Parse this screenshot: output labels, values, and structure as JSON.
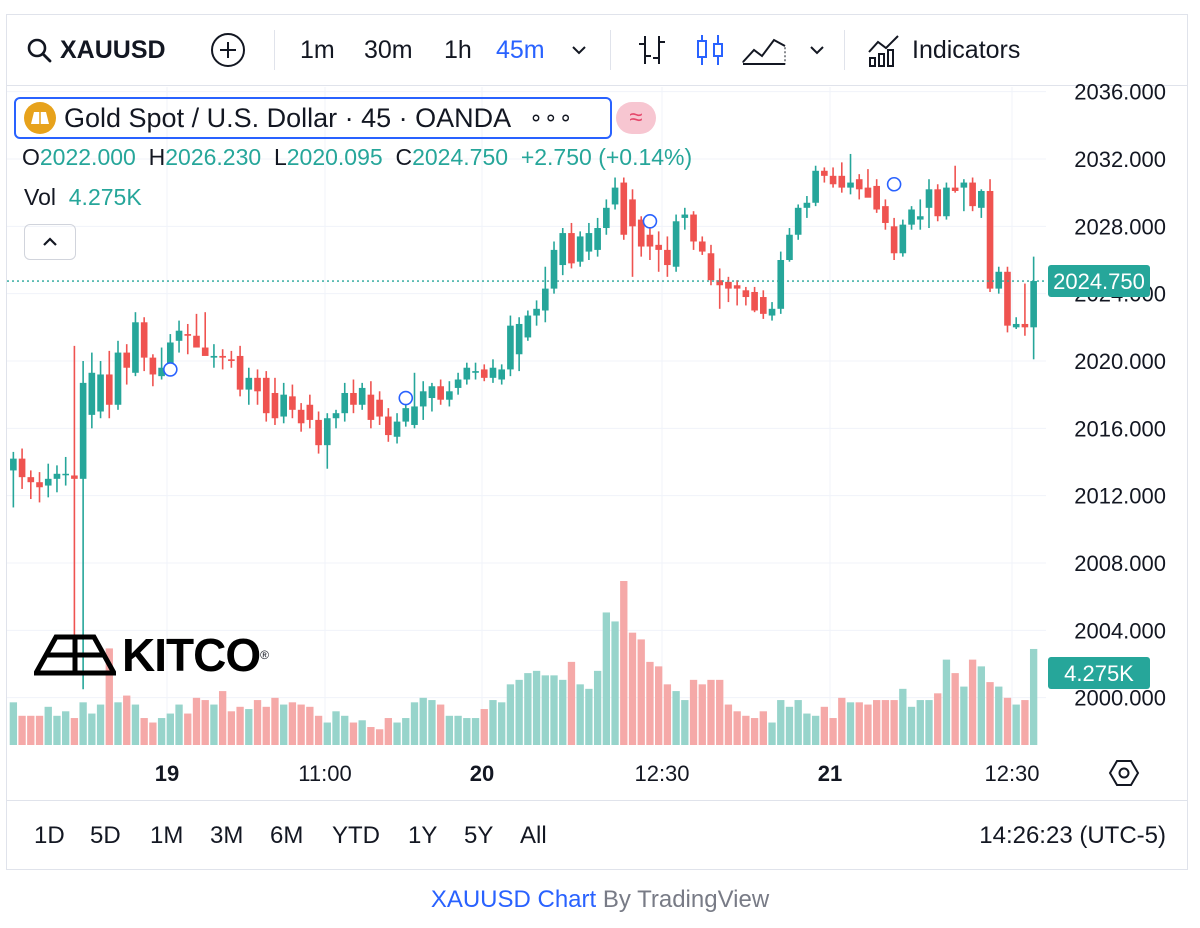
{
  "toolbar": {
    "symbol": "XAUUSD",
    "intervals": [
      "1m",
      "30m",
      "1h",
      "45m"
    ],
    "active_interval": "45m",
    "indicators_label": "Indicators"
  },
  "legend": {
    "title": "Gold Spot / U.S. Dollar · 45 · OANDA",
    "dots": "∘∘∘",
    "compare_symbol": "≈"
  },
  "ohlc": {
    "o_label": "O",
    "o": "2022.000",
    "h_label": "H",
    "h": "2026.230",
    "l_label": "L",
    "l": "2020.095",
    "c_label": "C",
    "c": "2024.750",
    "change": "+2.750 (+0.14%)"
  },
  "vol": {
    "label": "Vol",
    "value": "4.275K"
  },
  "watermark": "KITCO",
  "colors": {
    "up": "#26a69a",
    "down": "#ef5350",
    "accent": "#2962ff",
    "vol_up": "#97d4cb",
    "vol_down": "#f5a9a8"
  },
  "chart_data": {
    "type": "candlestick",
    "title": "Gold Spot / U.S. Dollar · 45 · OANDA",
    "y_ticks": [
      "2036.000",
      "2032.000",
      "2028.000",
      "2024.000",
      "2020.000",
      "2016.000",
      "2012.000",
      "2008.000",
      "2004.000",
      "2000.000"
    ],
    "ylim": [
      1997.5,
      2036.5
    ],
    "x_ticks": [
      "19",
      "11:00",
      "20",
      "12:30",
      "21",
      "12:30"
    ],
    "last_price": "2024.750",
    "last_volume": "4.275K",
    "grid": true,
    "candles": [
      {
        "o": 2013.5,
        "h": 2014.6,
        "l": 2011.3,
        "c": 2014.2,
        "v": 1.9
      },
      {
        "o": 2014.2,
        "h": 2014.8,
        "l": 2012.4,
        "c": 2013.1,
        "v": 1.3
      },
      {
        "o": 2013.1,
        "h": 2013.5,
        "l": 2011.8,
        "c": 2012.8,
        "v": 1.3
      },
      {
        "o": 2012.8,
        "h": 2013.4,
        "l": 2011.6,
        "c": 2012.5,
        "v": 1.3
      },
      {
        "o": 2012.6,
        "h": 2013.9,
        "l": 2011.9,
        "c": 2013.0,
        "v": 1.7
      },
      {
        "o": 2013.0,
        "h": 2013.8,
        "l": 2012.2,
        "c": 2013.3,
        "v": 1.3
      },
      {
        "o": 2013.3,
        "h": 2014.3,
        "l": 2012.6,
        "c": 2013.3,
        "v": 1.5
      },
      {
        "o": 2013.2,
        "h": 2020.9,
        "l": 2002.0,
        "c": 2013.0,
        "v": 1.2
      },
      {
        "o": 2013.0,
        "h": 2020.0,
        "l": 2000.5,
        "c": 2018.7,
        "v": 1.9
      },
      {
        "o": 2016.8,
        "h": 2020.5,
        "l": 2016.0,
        "c": 2019.3,
        "v": 1.4
      },
      {
        "o": 2017.0,
        "h": 2020.0,
        "l": 2016.6,
        "c": 2019.2,
        "v": 1.8
      },
      {
        "o": 2019.2,
        "h": 2020.6,
        "l": 2016.6,
        "c": 2017.4,
        "v": 4.3
      },
      {
        "o": 2017.4,
        "h": 2021.2,
        "l": 2017.1,
        "c": 2020.5,
        "v": 1.9
      },
      {
        "o": 2020.5,
        "h": 2021.0,
        "l": 2018.6,
        "c": 2019.6,
        "v": 2.2
      },
      {
        "o": 2019.3,
        "h": 2022.9,
        "l": 2019.1,
        "c": 2022.3,
        "v": 1.8
      },
      {
        "o": 2022.3,
        "h": 2022.6,
        "l": 2019.4,
        "c": 2020.2,
        "v": 1.2
      },
      {
        "o": 2020.2,
        "h": 2020.4,
        "l": 2018.5,
        "c": 2019.2,
        "v": 1.0
      },
      {
        "o": 2019.1,
        "h": 2020.8,
        "l": 2018.9,
        "c": 2019.6,
        "v": 1.2
      },
      {
        "o": 2019.5,
        "h": 2021.6,
        "l": 2019.4,
        "c": 2021.1,
        "v": 1.4
      },
      {
        "o": 2021.2,
        "h": 2022.4,
        "l": 2020.5,
        "c": 2021.8,
        "v": 1.8
      },
      {
        "o": 2021.6,
        "h": 2022.2,
        "l": 2020.4,
        "c": 2021.5,
        "v": 1.4
      },
      {
        "o": 2021.5,
        "h": 2022.8,
        "l": 2020.9,
        "c": 2020.8,
        "v": 2.1
      },
      {
        "o": 2020.8,
        "h": 2022.9,
        "l": 2020.4,
        "c": 2020.3,
        "v": 2.0
      },
      {
        "o": 2020.2,
        "h": 2021.0,
        "l": 2019.6,
        "c": 2020.3,
        "v": 1.8
      },
      {
        "o": 2020.3,
        "h": 2020.7,
        "l": 2019.5,
        "c": 2020.2,
        "v": 2.4
      },
      {
        "o": 2020.1,
        "h": 2020.6,
        "l": 2019.6,
        "c": 2020.0,
        "v": 1.5
      },
      {
        "o": 2020.3,
        "h": 2020.9,
        "l": 2017.9,
        "c": 2018.3,
        "v": 1.7
      },
      {
        "o": 2018.3,
        "h": 2019.6,
        "l": 2017.4,
        "c": 2019.0,
        "v": 1.6
      },
      {
        "o": 2019.0,
        "h": 2019.5,
        "l": 2017.4,
        "c": 2018.2,
        "v": 2.0
      },
      {
        "o": 2019.0,
        "h": 2019.4,
        "l": 2016.4,
        "c": 2016.9,
        "v": 1.7
      },
      {
        "o": 2018.1,
        "h": 2019.0,
        "l": 2016.2,
        "c": 2016.6,
        "v": 2.1
      },
      {
        "o": 2016.7,
        "h": 2018.7,
        "l": 2016.3,
        "c": 2018.0,
        "v": 1.8
      },
      {
        "o": 2017.9,
        "h": 2018.6,
        "l": 2016.6,
        "c": 2017.1,
        "v": 1.9
      },
      {
        "o": 2017.1,
        "h": 2017.5,
        "l": 2015.8,
        "c": 2016.3,
        "v": 1.8
      },
      {
        "o": 2017.4,
        "h": 2018.0,
        "l": 2016.0,
        "c": 2016.5,
        "v": 1.7
      },
      {
        "o": 2016.5,
        "h": 2017.0,
        "l": 2014.5,
        "c": 2015.0,
        "v": 1.3
      },
      {
        "o": 2015.0,
        "h": 2016.9,
        "l": 2013.6,
        "c": 2016.6,
        "v": 1.0
      },
      {
        "o": 2016.6,
        "h": 2017.1,
        "l": 2016.0,
        "c": 2016.9,
        "v": 1.5
      },
      {
        "o": 2016.9,
        "h": 2018.7,
        "l": 2016.4,
        "c": 2018.1,
        "v": 1.3
      },
      {
        "o": 2018.1,
        "h": 2018.9,
        "l": 2016.9,
        "c": 2017.4,
        "v": 1.0
      },
      {
        "o": 2017.4,
        "h": 2018.7,
        "l": 2017.1,
        "c": 2018.4,
        "v": 1.1
      },
      {
        "o": 2018.0,
        "h": 2018.8,
        "l": 2016.0,
        "c": 2016.5,
        "v": 0.8
      },
      {
        "o": 2017.7,
        "h": 2018.2,
        "l": 2016.2,
        "c": 2016.7,
        "v": 0.7
      },
      {
        "o": 2016.7,
        "h": 2017.2,
        "l": 2015.2,
        "c": 2015.6,
        "v": 1.2
      },
      {
        "o": 2015.5,
        "h": 2016.9,
        "l": 2015.1,
        "c": 2016.4,
        "v": 1.0
      },
      {
        "o": 2016.4,
        "h": 2017.4,
        "l": 2016.1,
        "c": 2017.2,
        "v": 1.2
      },
      {
        "o": 2016.2,
        "h": 2019.3,
        "l": 2016.0,
        "c": 2017.3,
        "v": 1.9
      },
      {
        "o": 2017.3,
        "h": 2018.8,
        "l": 2016.5,
        "c": 2018.2,
        "v": 2.1
      },
      {
        "o": 2017.8,
        "h": 2018.7,
        "l": 2017.0,
        "c": 2018.5,
        "v": 2.0
      },
      {
        "o": 2018.5,
        "h": 2018.9,
        "l": 2017.4,
        "c": 2017.7,
        "v": 1.8
      },
      {
        "o": 2017.7,
        "h": 2018.8,
        "l": 2017.3,
        "c": 2018.2,
        "v": 1.3
      },
      {
        "o": 2018.4,
        "h": 2019.3,
        "l": 2018.0,
        "c": 2018.9,
        "v": 1.3
      },
      {
        "o": 2018.9,
        "h": 2019.9,
        "l": 2018.6,
        "c": 2019.6,
        "v": 1.2
      },
      {
        "o": 2019.3,
        "h": 2019.9,
        "l": 2018.9,
        "c": 2019.4,
        "v": 1.2
      },
      {
        "o": 2019.5,
        "h": 2019.8,
        "l": 2018.8,
        "c": 2019.0,
        "v": 1.6
      },
      {
        "o": 2019.0,
        "h": 2020.1,
        "l": 2018.7,
        "c": 2019.6,
        "v": 2.0
      },
      {
        "o": 2018.9,
        "h": 2019.8,
        "l": 2018.6,
        "c": 2019.5,
        "v": 1.9
      },
      {
        "o": 2019.5,
        "h": 2022.7,
        "l": 2019.1,
        "c": 2022.1,
        "v": 2.7
      },
      {
        "o": 2020.4,
        "h": 2022.6,
        "l": 2019.4,
        "c": 2022.2,
        "v": 2.9
      },
      {
        "o": 2021.4,
        "h": 2023.0,
        "l": 2021.2,
        "c": 2022.7,
        "v": 3.2
      },
      {
        "o": 2022.7,
        "h": 2023.6,
        "l": 2022.1,
        "c": 2023.1,
        "v": 3.3
      },
      {
        "o": 2023.0,
        "h": 2025.6,
        "l": 2022.3,
        "c": 2024.3,
        "v": 3.1
      },
      {
        "o": 2024.3,
        "h": 2027.1,
        "l": 2024.0,
        "c": 2026.6,
        "v": 3.1
      },
      {
        "o": 2025.7,
        "h": 2027.9,
        "l": 2025.1,
        "c": 2027.6,
        "v": 2.9
      },
      {
        "o": 2027.6,
        "h": 2028.2,
        "l": 2025.5,
        "c": 2025.8,
        "v": 3.7
      },
      {
        "o": 2025.9,
        "h": 2027.7,
        "l": 2025.6,
        "c": 2027.4,
        "v": 2.7
      },
      {
        "o": 2026.5,
        "h": 2028.2,
        "l": 2026.0,
        "c": 2027.6,
        "v": 2.5
      },
      {
        "o": 2026.6,
        "h": 2028.5,
        "l": 2026.2,
        "c": 2027.9,
        "v": 3.3
      },
      {
        "o": 2027.9,
        "h": 2029.6,
        "l": 2027.5,
        "c": 2029.1,
        "v": 5.9
      },
      {
        "o": 2029.3,
        "h": 2030.9,
        "l": 2029.0,
        "c": 2030.3,
        "v": 5.5
      },
      {
        "o": 2030.6,
        "h": 2030.9,
        "l": 2027.2,
        "c": 2027.5,
        "v": 7.3
      },
      {
        "o": 2029.6,
        "h": 2030.2,
        "l": 2025.0,
        "c": 2028.0,
        "v": 5.0
      },
      {
        "o": 2028.4,
        "h": 2028.6,
        "l": 2026.2,
        "c": 2026.8,
        "v": 4.7
      },
      {
        "o": 2027.5,
        "h": 2028.3,
        "l": 2026.0,
        "c": 2026.8,
        "v": 3.7
      },
      {
        "o": 2026.9,
        "h": 2027.7,
        "l": 2025.3,
        "c": 2026.6,
        "v": 3.5
      },
      {
        "o": 2026.6,
        "h": 2027.4,
        "l": 2025.0,
        "c": 2025.7,
        "v": 2.7
      },
      {
        "o": 2025.6,
        "h": 2028.7,
        "l": 2025.3,
        "c": 2028.3,
        "v": 2.4
      },
      {
        "o": 2028.5,
        "h": 2029.1,
        "l": 2027.8,
        "c": 2028.7,
        "v": 2.0
      },
      {
        "o": 2028.7,
        "h": 2028.9,
        "l": 2026.6,
        "c": 2027.1,
        "v": 2.9
      },
      {
        "o": 2027.1,
        "h": 2027.4,
        "l": 2026.3,
        "c": 2026.5,
        "v": 2.7
      },
      {
        "o": 2026.4,
        "h": 2026.9,
        "l": 2024.5,
        "c": 2024.8,
        "v": 2.9
      },
      {
        "o": 2024.8,
        "h": 2025.5,
        "l": 2023.1,
        "c": 2024.5,
        "v": 2.9
      },
      {
        "o": 2024.7,
        "h": 2025.0,
        "l": 2023.5,
        "c": 2024.3,
        "v": 1.8
      },
      {
        "o": 2024.5,
        "h": 2024.8,
        "l": 2023.3,
        "c": 2024.3,
        "v": 1.5
      },
      {
        "o": 2024.2,
        "h": 2024.4,
        "l": 2023.3,
        "c": 2023.8,
        "v": 1.3
      },
      {
        "o": 2024.1,
        "h": 2024.4,
        "l": 2022.9,
        "c": 2023.0,
        "v": 1.2
      },
      {
        "o": 2023.8,
        "h": 2024.2,
        "l": 2022.5,
        "c": 2022.8,
        "v": 1.5
      },
      {
        "o": 2022.7,
        "h": 2023.5,
        "l": 2022.4,
        "c": 2023.1,
        "v": 1.0
      },
      {
        "o": 2023.1,
        "h": 2026.5,
        "l": 2022.8,
        "c": 2026.0,
        "v": 2.0
      },
      {
        "o": 2026.0,
        "h": 2027.9,
        "l": 2025.9,
        "c": 2027.5,
        "v": 1.7
      },
      {
        "o": 2027.5,
        "h": 2029.3,
        "l": 2027.2,
        "c": 2029.1,
        "v": 2.0
      },
      {
        "o": 2029.1,
        "h": 2029.8,
        "l": 2028.5,
        "c": 2029.4,
        "v": 1.4
      },
      {
        "o": 2029.4,
        "h": 2031.6,
        "l": 2029.2,
        "c": 2031.3,
        "v": 1.3
      },
      {
        "o": 2031.3,
        "h": 2031.5,
        "l": 2030.6,
        "c": 2031.0,
        "v": 1.7
      },
      {
        "o": 2031.0,
        "h": 2031.5,
        "l": 2030.3,
        "c": 2030.5,
        "v": 1.2
      },
      {
        "o": 2031.0,
        "h": 2031.8,
        "l": 2030.0,
        "c": 2030.3,
        "v": 2.1
      },
      {
        "o": 2030.3,
        "h": 2032.3,
        "l": 2029.9,
        "c": 2030.6,
        "v": 1.9
      },
      {
        "o": 2030.8,
        "h": 2031.1,
        "l": 2029.6,
        "c": 2030.2,
        "v": 1.9
      },
      {
        "o": 2030.3,
        "h": 2031.4,
        "l": 2029.8,
        "c": 2029.7,
        "v": 1.8
      },
      {
        "o": 2030.4,
        "h": 2030.8,
        "l": 2028.8,
        "c": 2029.0,
        "v": 2.0
      },
      {
        "o": 2029.2,
        "h": 2029.6,
        "l": 2027.8,
        "c": 2028.2,
        "v": 2.0
      },
      {
        "o": 2028.0,
        "h": 2028.5,
        "l": 2026.0,
        "c": 2026.4,
        "v": 2.0
      },
      {
        "o": 2026.4,
        "h": 2028.4,
        "l": 2026.2,
        "c": 2028.1,
        "v": 2.5
      },
      {
        "o": 2028.1,
        "h": 2029.2,
        "l": 2027.8,
        "c": 2029.0,
        "v": 1.7
      },
      {
        "o": 2028.4,
        "h": 2029.6,
        "l": 2027.8,
        "c": 2028.6,
        "v": 2.0
      },
      {
        "o": 2029.1,
        "h": 2030.8,
        "l": 2027.9,
        "c": 2030.2,
        "v": 2.0
      },
      {
        "o": 2030.2,
        "h": 2030.5,
        "l": 2028.3,
        "c": 2028.6,
        "v": 2.3
      },
      {
        "o": 2028.6,
        "h": 2030.6,
        "l": 2028.4,
        "c": 2030.3,
        "v": 3.8
      },
      {
        "o": 2030.3,
        "h": 2031.6,
        "l": 2030.0,
        "c": 2030.1,
        "v": 3.2
      },
      {
        "o": 2030.3,
        "h": 2030.8,
        "l": 2028.9,
        "c": 2030.6,
        "v": 2.6
      },
      {
        "o": 2030.6,
        "h": 2030.9,
        "l": 2028.9,
        "c": 2029.2,
        "v": 3.8
      },
      {
        "o": 2029.1,
        "h": 2030.2,
        "l": 2028.5,
        "c": 2030.1,
        "v": 3.5
      },
      {
        "o": 2030.1,
        "h": 2030.8,
        "l": 2024.1,
        "c": 2024.3,
        "v": 2.8
      },
      {
        "o": 2024.3,
        "h": 2025.6,
        "l": 2024.0,
        "c": 2025.3,
        "v": 2.6
      },
      {
        "o": 2025.3,
        "h": 2025.6,
        "l": 2021.7,
        "c": 2022.1,
        "v": 2.1
      },
      {
        "o": 2022.0,
        "h": 2022.6,
        "l": 2021.9,
        "c": 2022.2,
        "v": 1.8
      },
      {
        "o": 2022.2,
        "h": 2024.6,
        "l": 2021.5,
        "c": 2022.0,
        "v": 2.0
      },
      {
        "o": 2022.0,
        "h": 2026.2,
        "l": 2020.1,
        "c": 2024.75,
        "v": 4.275
      }
    ]
  },
  "axis": {
    "price_label": "2024.750",
    "vol_label": "4.275K"
  },
  "range_buttons": [
    "1D",
    "5D",
    "1M",
    "3M",
    "6M",
    "YTD",
    "1Y",
    "5Y",
    "All"
  ],
  "clock": "14:26:23 (UTC-5)",
  "attribution": {
    "link": "XAUUSD Chart",
    "rest": " By TradingView"
  }
}
